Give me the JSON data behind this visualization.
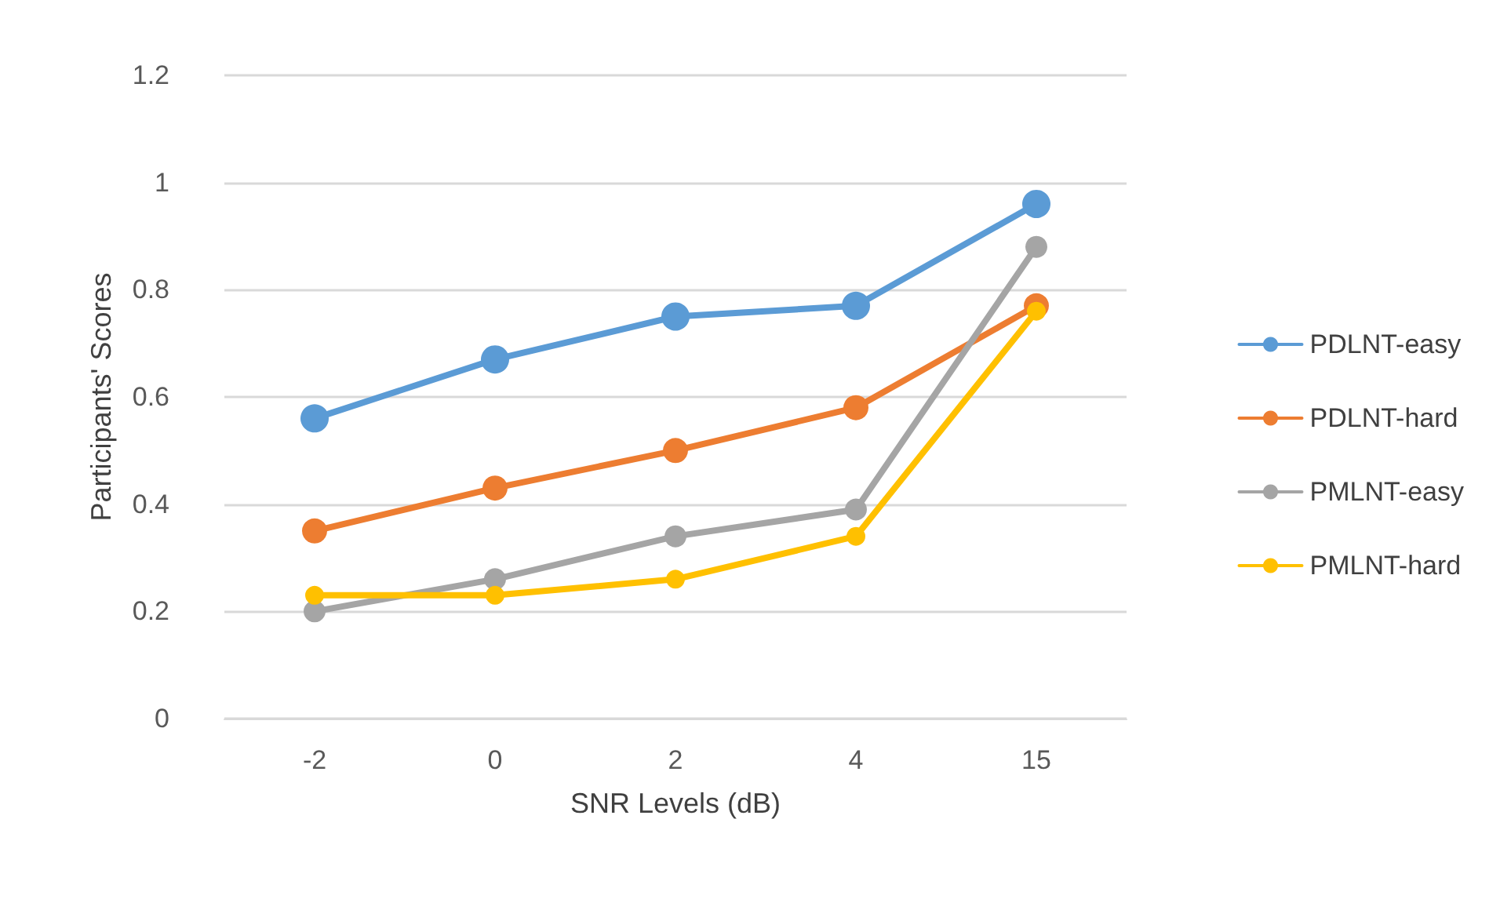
{
  "chart_data": {
    "type": "line",
    "xlabel": "SNR Levels (dB)",
    "ylabel": "Participants' Scores",
    "categories": [
      "-2",
      "0",
      "2",
      "4",
      "15"
    ],
    "series": [
      {
        "name": "PDLNT-easy",
        "color": "#5b9bd5",
        "values": [
          0.56,
          0.67,
          0.75,
          0.77,
          0.96
        ]
      },
      {
        "name": "PDLNT-hard",
        "color": "#ed7d31",
        "values": [
          0.35,
          0.43,
          0.5,
          0.58,
          0.77
        ]
      },
      {
        "name": "PMLNT-easy",
        "color": "#a5a5a5",
        "values": [
          0.2,
          0.26,
          0.34,
          0.39,
          0.88
        ]
      },
      {
        "name": "PMLNT-hard",
        "color": "#ffc000",
        "values": [
          0.23,
          0.23,
          0.26,
          0.34,
          0.76
        ]
      }
    ],
    "ylim": [
      0,
      1.2
    ],
    "yticks": [
      0,
      0.2,
      0.4,
      0.6,
      0.8,
      1,
      1.2
    ],
    "grid": "y",
    "legend": "right",
    "marker": "circle",
    "line_style": "solid"
  }
}
